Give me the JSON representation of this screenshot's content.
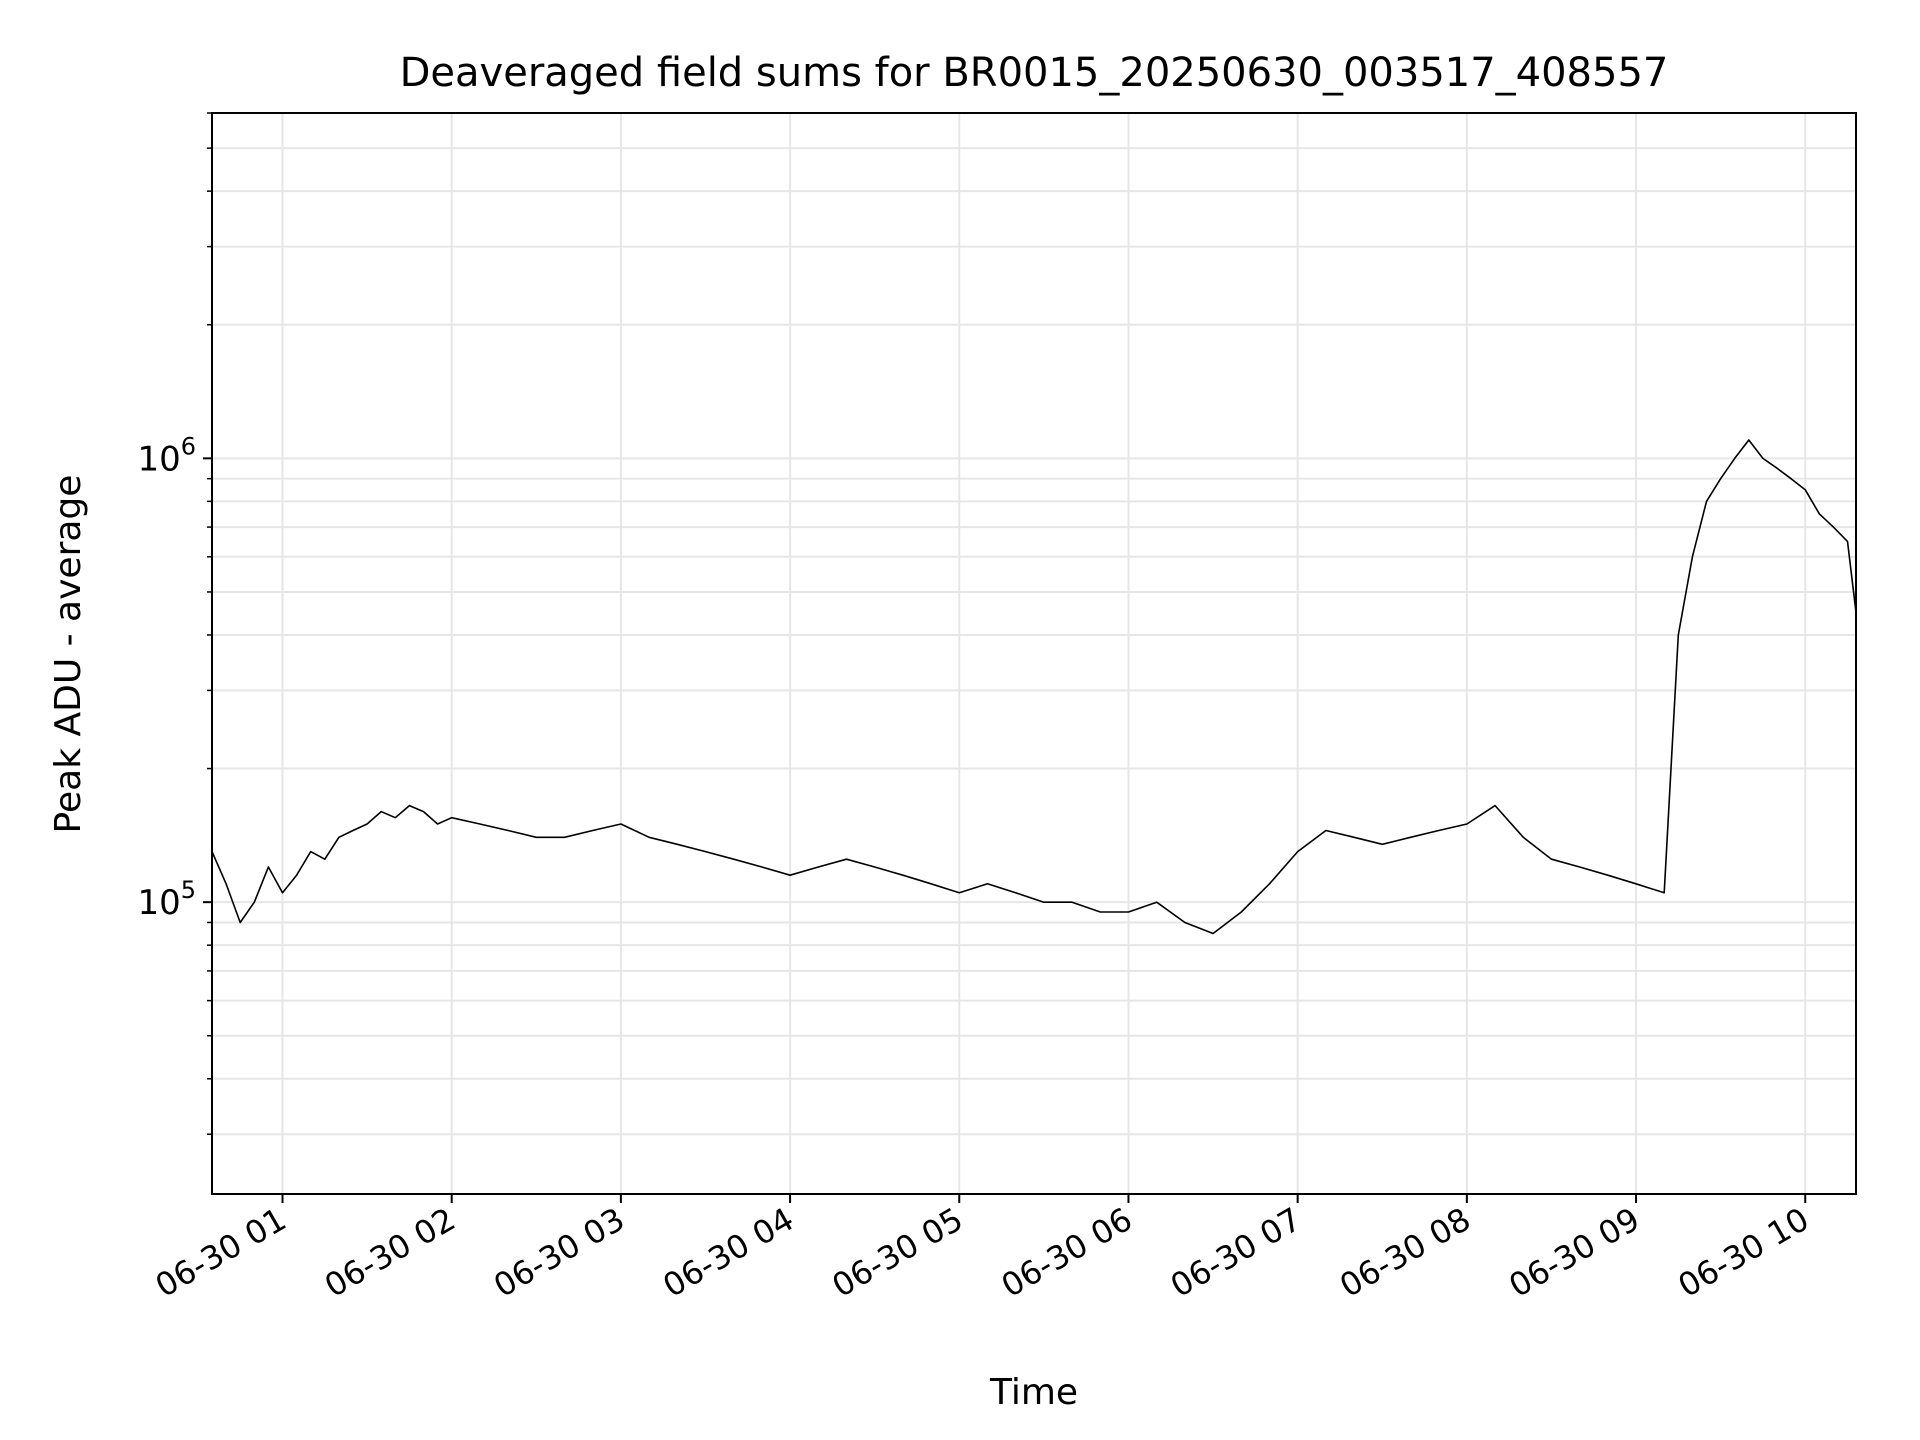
{
  "chart_data": {
    "type": "line",
    "title": "Deaveraged field sums for BR0015_20250630_003517_408557",
    "xlabel": "Time",
    "ylabel": "Peak ADU - average",
    "y_scale": "log",
    "ylim": [
      22000,
      6000000
    ],
    "xlim": [
      "2025-06-30 00:35",
      "2025-06-30 10:18"
    ],
    "x_tick_labels": [
      "06-30 01",
      "06-30 02",
      "06-30 03",
      "06-30 04",
      "06-30 05",
      "06-30 06",
      "06-30 07",
      "06-30 08",
      "06-30 09",
      "06-30 10"
    ],
    "x_tick_times": [
      "2025-06-30 01:00",
      "2025-06-30 02:00",
      "2025-06-30 03:00",
      "2025-06-30 04:00",
      "2025-06-30 05:00",
      "2025-06-30 06:00",
      "2025-06-30 07:00",
      "2025-06-30 08:00",
      "2025-06-30 09:00",
      "2025-06-30 10:00"
    ],
    "y_tick_labels": [
      {
        "base": "10",
        "exp": "5",
        "value": 100000
      },
      {
        "base": "10",
        "exp": "6",
        "value": 1000000
      }
    ],
    "grid": true,
    "line_color": "#000000",
    "series": [
      {
        "x": [
          "2025-06-30 00:35",
          "2025-06-30 00:40",
          "2025-06-30 00:45",
          "2025-06-30 00:50",
          "2025-06-30 00:55",
          "2025-06-30 01:00",
          "2025-06-30 01:05",
          "2025-06-30 01:10",
          "2025-06-30 01:15",
          "2025-06-30 01:20",
          "2025-06-30 01:25",
          "2025-06-30 01:30",
          "2025-06-30 01:35",
          "2025-06-30 01:40",
          "2025-06-30 01:45",
          "2025-06-30 01:50",
          "2025-06-30 01:55",
          "2025-06-30 02:00",
          "2025-06-30 02:10",
          "2025-06-30 02:20",
          "2025-06-30 02:30",
          "2025-06-30 02:40",
          "2025-06-30 02:50",
          "2025-06-30 03:00",
          "2025-06-30 03:10",
          "2025-06-30 03:20",
          "2025-06-30 03:30",
          "2025-06-30 03:40",
          "2025-06-30 03:50",
          "2025-06-30 04:00",
          "2025-06-30 04:10",
          "2025-06-30 04:20",
          "2025-06-30 04:30",
          "2025-06-30 04:40",
          "2025-06-30 04:50",
          "2025-06-30 05:00",
          "2025-06-30 05:10",
          "2025-06-30 05:20",
          "2025-06-30 05:30",
          "2025-06-30 05:40",
          "2025-06-30 05:50",
          "2025-06-30 06:00",
          "2025-06-30 06:10",
          "2025-06-30 06:20",
          "2025-06-30 06:30",
          "2025-06-30 06:40",
          "2025-06-30 06:50",
          "2025-06-30 07:00",
          "2025-06-30 07:10",
          "2025-06-30 07:20",
          "2025-06-30 07:30",
          "2025-06-30 07:40",
          "2025-06-30 07:50",
          "2025-06-30 08:00",
          "2025-06-30 08:10",
          "2025-06-30 08:20",
          "2025-06-30 08:30",
          "2025-06-30 08:40",
          "2025-06-30 08:50",
          "2025-06-30 09:00",
          "2025-06-30 09:10",
          "2025-06-30 09:15",
          "2025-06-30 09:20",
          "2025-06-30 09:25",
          "2025-06-30 09:30",
          "2025-06-30 09:35",
          "2025-06-30 09:40",
          "2025-06-30 09:45",
          "2025-06-30 09:50",
          "2025-06-30 09:55",
          "2025-06-30 10:00",
          "2025-06-30 10:05",
          "2025-06-30 10:10",
          "2025-06-30 10:15",
          "2025-06-30 10:18"
        ],
        "y": [
          130000,
          110000,
          90000,
          100000,
          120000,
          105000,
          115000,
          130000,
          125000,
          140000,
          145000,
          150000,
          160000,
          155000,
          165000,
          160000,
          150000,
          155000,
          150000,
          145000,
          140000,
          140000,
          145000,
          150000,
          140000,
          135000,
          130000,
          125000,
          120000,
          115000,
          120000,
          125000,
          120000,
          115000,
          110000,
          105000,
          110000,
          105000,
          100000,
          100000,
          95000,
          95000,
          100000,
          90000,
          85000,
          95000,
          110000,
          130000,
          145000,
          140000,
          135000,
          140000,
          145000,
          150000,
          165000,
          140000,
          125000,
          120000,
          115000,
          110000,
          105000,
          400000,
          600000,
          800000,
          900000,
          1000000,
          1100000,
          1000000,
          950000,
          900000,
          850000,
          750000,
          700000,
          650000,
          450000
        ]
      }
    ]
  }
}
